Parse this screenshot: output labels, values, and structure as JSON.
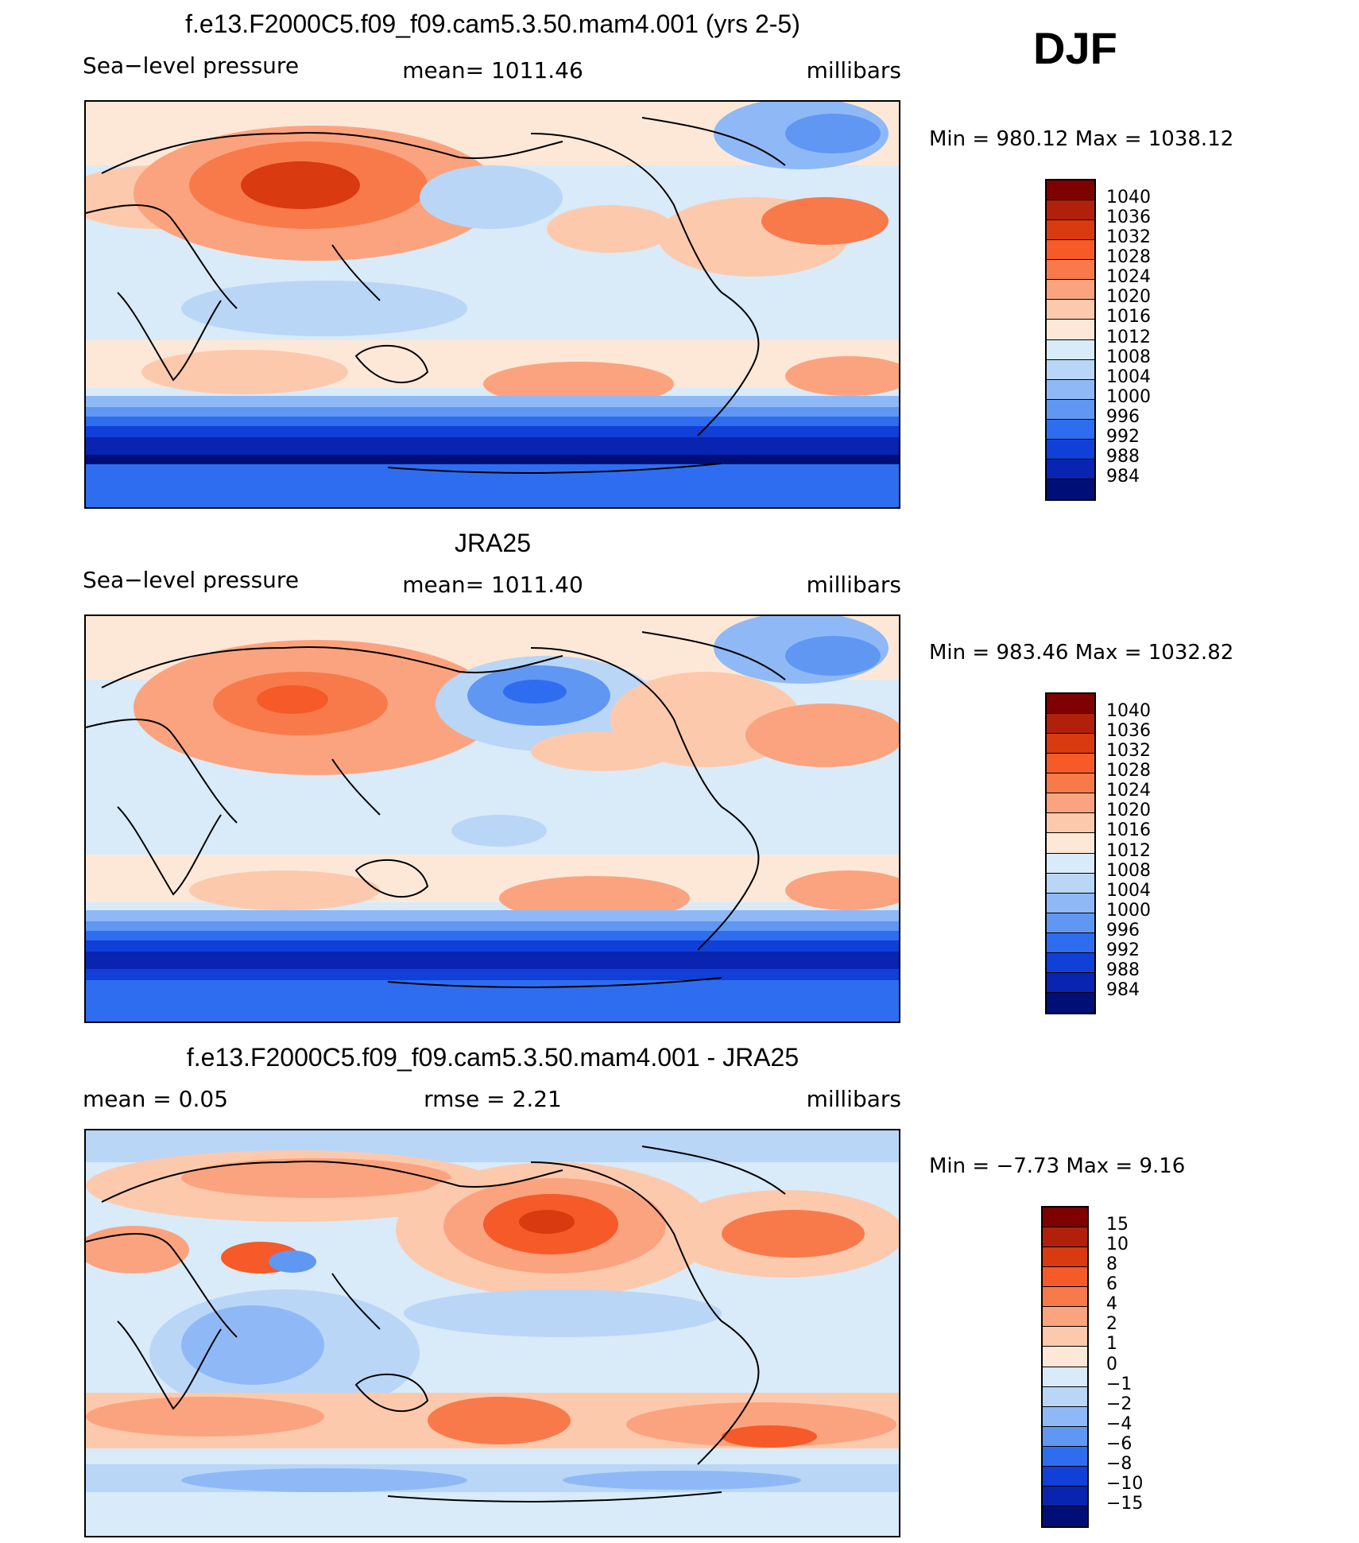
{
  "season": "DJF",
  "panels": [
    {
      "title": "f.e13.F2000C5.f09_f09.cam5.3.50.mam4.001 (yrs 2-5)",
      "left_label": "Sea−level pressure",
      "center_label": "mean=  1011.46",
      "right_label": "millibars",
      "minmax": "Min  =  980.12  Max  =  1038.12"
    },
    {
      "title": "JRA25",
      "left_label": "Sea−level pressure",
      "center_label": "mean=  1011.40",
      "right_label": "millibars",
      "minmax": "Min  =  983.46  Max  =  1032.82"
    },
    {
      "title": "f.e13.F2000C5.f09_f09.cam5.3.50.mam4.001 - JRA25",
      "left_label": "mean  =     0.05",
      "center_label": "rmse  =     2.21",
      "right_label": "millibars",
      "minmax": "Min  =   −7.73  Max  =      9.16"
    }
  ],
  "colorbar_abs": {
    "labels": [
      "1040",
      "1036",
      "1032",
      "1028",
      "1024",
      "1020",
      "1016",
      "1012",
      "1008",
      "1004",
      "1000",
      "996",
      "992",
      "988",
      "984"
    ],
    "colors": [
      "#7f0000",
      "#b0200a",
      "#d93a10",
      "#f55a28",
      "#f87a4a",
      "#fba37f",
      "#fdc9ad",
      "#fde8d8",
      "#d9eaf8",
      "#b9d6f7",
      "#8fb9f6",
      "#6097f3",
      "#2f6df0",
      "#1040d8",
      "#0824b0",
      "#000f78"
    ]
  },
  "colorbar_diff": {
    "labels": [
      "15",
      "10",
      "8",
      "6",
      "4",
      "2",
      "1",
      "0",
      "−1",
      "−2",
      "−4",
      "−6",
      "−8",
      "−10",
      "−15"
    ],
    "colors": [
      "#7f0000",
      "#b0200a",
      "#d93a10",
      "#f55a28",
      "#f87a4a",
      "#fba37f",
      "#fdc9ad",
      "#fde8d8",
      "#d9eaf8",
      "#b9d6f7",
      "#8fb9f6",
      "#6097f3",
      "#2f6df0",
      "#1040d8",
      "#0824b0",
      "#000f78"
    ]
  }
}
